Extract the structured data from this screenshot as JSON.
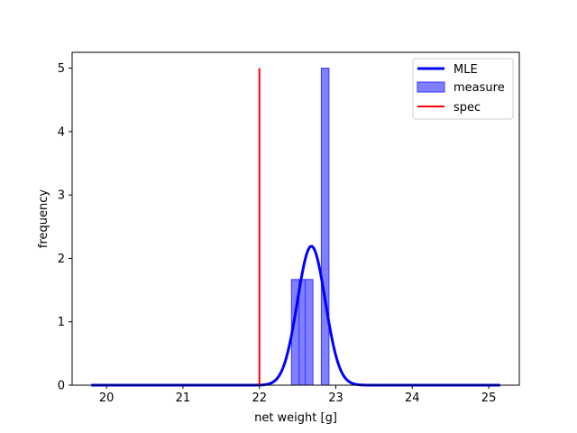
{
  "chart_data": {
    "type": "bar",
    "xlabel": "net weight [g]",
    "ylabel": "frequency",
    "xlim": [
      19.55,
      25.4
    ],
    "ylim": [
      0,
      5.25
    ],
    "xticks": [
      20,
      21,
      22,
      23,
      24,
      25
    ],
    "yticks": [
      0,
      1,
      2,
      3,
      4,
      5
    ],
    "grid": false,
    "legend_position": "top-right",
    "colors": {
      "mle": "#0000ff",
      "measure_fill": "#8080ff",
      "measure_edge": "#3333ff",
      "spec": "#ff0000"
    },
    "series": [
      {
        "name": "MLE",
        "kind": "line",
        "mean": 22.68,
        "sd": 0.182,
        "x_range": [
          19.8,
          25.15
        ]
      },
      {
        "name": "measure",
        "kind": "histogram",
        "bins": [
          {
            "x0": 22.42,
            "x1": 22.52,
            "value": 1.667
          },
          {
            "x0": 22.52,
            "x1": 22.6,
            "value": 1.667
          },
          {
            "x0": 22.6,
            "x1": 22.7,
            "value": 1.667
          },
          {
            "x0": 22.81,
            "x1": 22.91,
            "value": 5.0
          }
        ]
      },
      {
        "name": "spec",
        "kind": "vline",
        "x": 22.0,
        "y_range": [
          0,
          5.0
        ]
      }
    ]
  }
}
